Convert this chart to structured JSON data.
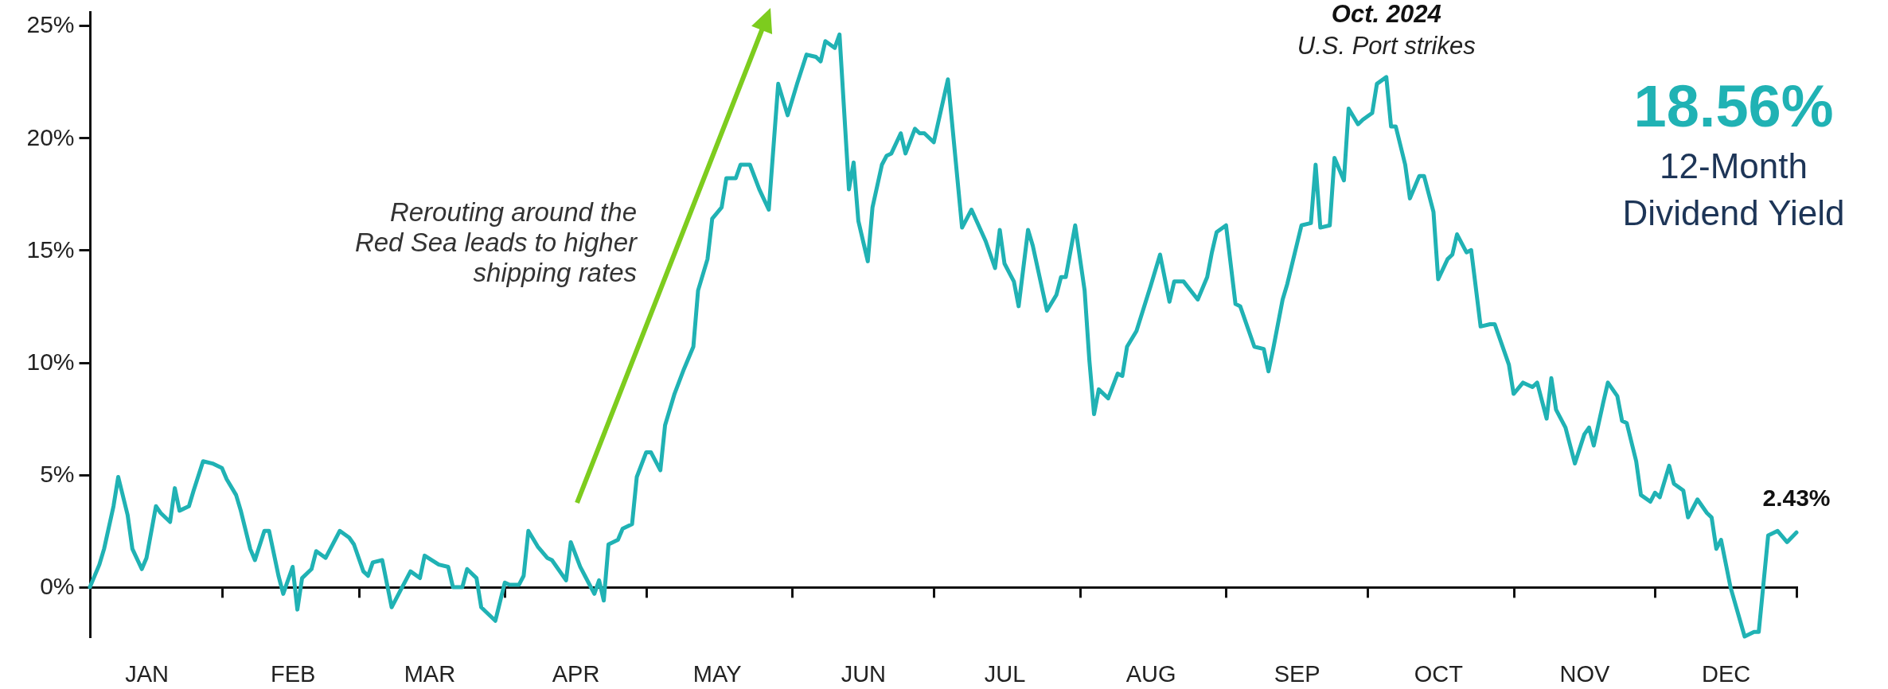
{
  "chart_data": {
    "type": "line",
    "x": [
      "--01-04",
      "--01-06",
      "--01-07",
      "--01-09",
      "--01-10",
      "--01-12",
      "--01-13",
      "--01-15",
      "--01-16",
      "--01-18",
      "--01-19",
      "--01-21",
      "--01-22",
      "--01-23",
      "--01-25",
      "--01-26",
      "--01-28",
      "--01-30",
      "--02-01",
      "--02-02",
      "--02-04",
      "--02-05",
      "--02-07",
      "--02-08",
      "--02-10",
      "--02-11",
      "--02-13",
      "--02-14",
      "--02-16",
      "--02-17",
      "--02-18",
      "--02-20",
      "--02-21",
      "--02-23",
      "--02-26",
      "--02-28",
      "--02-29",
      "--03-02",
      "--03-03",
      "--03-04",
      "--03-06",
      "--03-08",
      "--03-10",
      "--03-12",
      "--03-14",
      "--03-15",
      "--03-18",
      "--03-20",
      "--03-21",
      "--03-23",
      "--03-24",
      "--03-26",
      "--03-27",
      "--03-28",
      "--03-30",
      "--04-01",
      "--04-02",
      "--04-04",
      "--04-05",
      "--04-06",
      "--04-08",
      "--04-10",
      "--04-11",
      "--04-14",
      "--04-15",
      "--04-17",
      "--04-18",
      "--04-20",
      "--04-21",
      "--04-22",
      "--04-23",
      "--04-25",
      "--04-26",
      "--04-28",
      "--04-29",
      "--05-01",
      "--05-02",
      "--05-04",
      "--05-05",
      "--05-07",
      "--05-09",
      "--05-11",
      "--05-12",
      "--05-14",
      "--05-15",
      "--05-17",
      "--05-18",
      "--05-20",
      "--05-21",
      "--05-23",
      "--05-25",
      "--05-27",
      "--05-29",
      "--05-31",
      "--06-01",
      "--06-02",
      "--06-04",
      "--06-06",
      "--06-07",
      "--06-08",
      "--06-10",
      "--06-11",
      "--06-13",
      "--06-14",
      "--06-15",
      "--06-17",
      "--06-18",
      "--06-20",
      "--06-21",
      "--06-22",
      "--06-24",
      "--06-25",
      "--06-27",
      "--06-28",
      "--06-29",
      "--07-01",
      "--07-04",
      "--07-07",
      "--07-09",
      "--07-12",
      "--07-14",
      "--07-15",
      "--07-16",
      "--07-18",
      "--07-19",
      "--07-21",
      "--07-22",
      "--07-25",
      "--07-27",
      "--07-28",
      "--07-29",
      "--07-31",
      "--08-02",
      "--08-03",
      "--08-04",
      "--08-05",
      "--08-07",
      "--08-09",
      "--08-10",
      "--08-11",
      "--08-13",
      "--08-16",
      "--08-18",
      "--08-20",
      "--08-21",
      "--08-23",
      "--08-26",
      "--08-28",
      "--08-29",
      "--08-30",
      "--09-01",
      "--09-03",
      "--09-04",
      "--09-07",
      "--09-09",
      "--09-10",
      "--09-11",
      "--09-13",
      "--09-14",
      "--09-17",
      "--09-19",
      "--09-20",
      "--09-21",
      "--09-23",
      "--09-24",
      "--09-26",
      "--09-27",
      "--09-29",
      "--09-30",
      "--10-02",
      "--10-03",
      "--10-05",
      "--10-06",
      "--10-07",
      "--10-09",
      "--10-10",
      "--10-12",
      "--10-13",
      "--10-15",
      "--10-16",
      "--10-18",
      "--10-19",
      "--10-20",
      "--10-22",
      "--10-23",
      "--10-25",
      "--10-27",
      "--10-28",
      "--10-30",
      "--10-31",
      "--11-01",
      "--11-03",
      "--11-05",
      "--11-06",
      "--11-08",
      "--11-09",
      "--11-10",
      "--11-12",
      "--11-14",
      "--11-16",
      "--11-17",
      "--11-18",
      "--11-20",
      "--11-21",
      "--11-23",
      "--11-24",
      "--11-25",
      "--11-27",
      "--11-28",
      "--11-30",
      "--12-01",
      "--12-02",
      "--12-04",
      "--12-05",
      "--12-07",
      "--12-08",
      "--12-10",
      "--12-12",
      "--12-13",
      "--12-14",
      "--12-15",
      "--12-17",
      "--12-20",
      "--12-22",
      "--12-23",
      "--12-25",
      "--12-27",
      "--12-29",
      "--12-31"
    ],
    "values": [
      0,
      1.0,
      1.7,
      3.6,
      4.9,
      3.2,
      1.7,
      0.8,
      1.3,
      3.6,
      3.3,
      2.9,
      4.4,
      3.4,
      3.6,
      4.3,
      5.6,
      5.5,
      5.3,
      4.8,
      4.1,
      3.4,
      1.7,
      1.2,
      2.5,
      2.5,
      0.5,
      -0.3,
      0.9,
      -1.0,
      0.4,
      0.8,
      1.6,
      1.3,
      2.5,
      2.2,
      1.9,
      0.7,
      0.5,
      1.1,
      1.2,
      -0.9,
      -0.1,
      0.7,
      0.4,
      1.4,
      1.0,
      0.9,
      0,
      0,
      0.8,
      0.4,
      -0.9,
      -1.1,
      -1.5,
      0.2,
      0.1,
      0.1,
      0.5,
      2.5,
      1.8,
      1.3,
      1.2,
      0.3,
      2.0,
      0.9,
      0.5,
      -0.3,
      0.3,
      -0.6,
      1.9,
      2.1,
      2.6,
      2.8,
      4.9,
      6.0,
      6.0,
      5.2,
      7.2,
      8.6,
      9.7,
      10.7,
      13.2,
      14.6,
      16.4,
      16.9,
      18.2,
      18.2,
      18.8,
      18.8,
      17.7,
      16.8,
      22.4,
      21.0,
      21.7,
      22.4,
      23.7,
      23.6,
      23.4,
      24.3,
      24.0,
      24.6,
      17.7,
      18.9,
      16.3,
      14.5,
      16.9,
      18.8,
      19.2,
      19.3,
      20.2,
      19.3,
      20.4,
      20.2,
      20.2,
      19.8,
      22.6,
      16.0,
      16.8,
      15.4,
      14.2,
      15.9,
      14.4,
      13.6,
      12.5,
      15.9,
      15.2,
      12.3,
      13.0,
      13.8,
      13.8,
      16.1,
      13.2,
      10.1,
      7.7,
      8.8,
      8.4,
      9.5,
      9.4,
      10.7,
      11.4,
      13.4,
      14.8,
      12.7,
      13.6,
      13.6,
      12.8,
      13.8,
      14.9,
      15.8,
      16.1,
      12.6,
      12.5,
      10.7,
      10.6,
      9.6,
      10.6,
      12.8,
      13.5,
      16.1,
      16.2,
      18.8,
      16.0,
      16.1,
      19.1,
      18.1,
      21.3,
      20.6,
      20.8,
      21.1,
      22.4,
      22.7,
      20.5,
      20.5,
      18.8,
      17.3,
      18.3,
      18.3,
      16.7,
      13.7,
      14.6,
      14.8,
      15.7,
      14.9,
      15.0,
      11.6,
      11.7,
      11.7,
      10.5,
      9.9,
      8.6,
      9.1,
      8.9,
      9.1,
      7.5,
      9.3,
      7.9,
      7.1,
      5.5,
      6.8,
      7.1,
      6.3,
      8.2,
      9.1,
      8.5,
      7.4,
      7.3,
      5.6,
      4.1,
      3.8,
      4.2,
      4.0,
      5.4,
      4.6,
      4.3,
      3.1,
      3.9,
      3.3,
      3.1,
      1.7,
      2.1,
      0,
      -2.2,
      -2.0,
      -2.0,
      2.3,
      2.5,
      2.0,
      2.43
    ],
    "color": "#20b2b4",
    "xlim": [
      "--01-04",
      "--12-31"
    ],
    "xticks": [
      {
        "value": "--01-16",
        "label": "JAN"
      },
      {
        "value": "--02-01",
        "label": null
      },
      {
        "value": "--02-16",
        "label": "FEB"
      },
      {
        "value": "--03-01",
        "label": null
      },
      {
        "value": "--03-16",
        "label": "MAR"
      },
      {
        "value": "--04-01",
        "label": null
      },
      {
        "value": "--04-16",
        "label": "APR"
      },
      {
        "value": "--05-01",
        "label": null
      },
      {
        "value": "--05-16",
        "label": "MAY"
      },
      {
        "value": "--06-01",
        "label": null
      },
      {
        "value": "--06-16",
        "label": "JUN"
      },
      {
        "value": "--07-01",
        "label": null
      },
      {
        "value": "--07-16",
        "label": "JUL"
      },
      {
        "value": "--08-01",
        "label": null
      },
      {
        "value": "--08-16",
        "label": "AUG"
      },
      {
        "value": "--09-01",
        "label": null
      },
      {
        "value": "--09-16",
        "label": "SEP"
      },
      {
        "value": "--10-01",
        "label": null
      },
      {
        "value": "--10-16",
        "label": "OCT"
      },
      {
        "value": "--11-01",
        "label": null
      },
      {
        "value": "--11-16",
        "label": "NOV"
      },
      {
        "value": "--12-01",
        "label": null
      },
      {
        "value": "--12-16",
        "label": "DEC"
      },
      {
        "value": "--12-31",
        "label": null
      }
    ],
    "ylim": [
      -2.2,
      25.6
    ],
    "yticks": [
      {
        "value": 0,
        "label": "0%"
      },
      {
        "value": 5,
        "label": "5%"
      },
      {
        "value": 10,
        "label": "10%"
      },
      {
        "value": 15,
        "label": "15%"
      },
      {
        "value": 20,
        "label": "20%"
      },
      {
        "value": 25,
        "label": "25%"
      }
    ],
    "annotations": [
      "Rerouting around the\nRed Sea leads to higher\nshipping rates",
      {
        "text": "Oct. 2024\nU.S. Port strikes",
        "x": "--10-05",
        "y": 22.7
      },
      "18.56%\n12-Month\nDividend Yield",
      {
        "text": "2.43%",
        "x": "--12-31",
        "y": 2.43
      }
    ]
  }
}
